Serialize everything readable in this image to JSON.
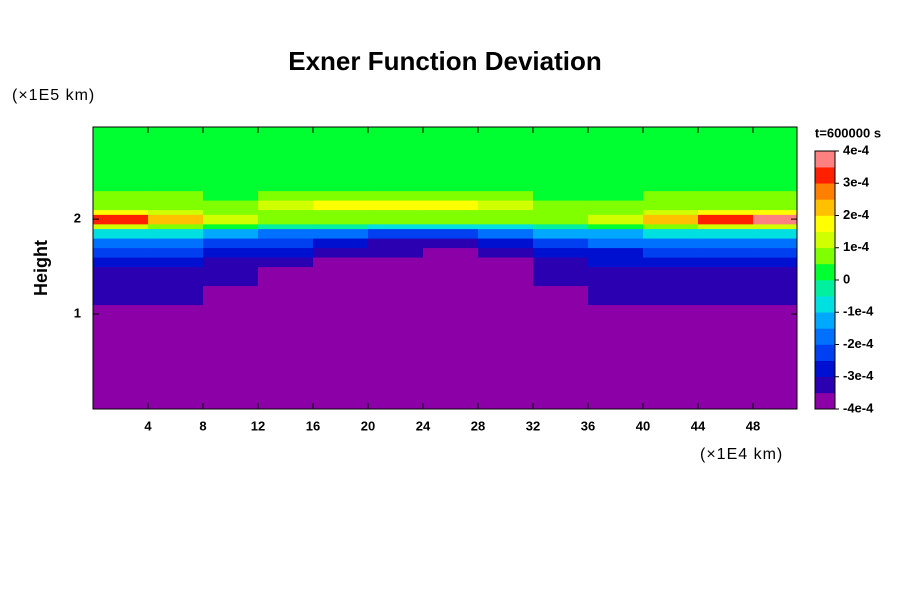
{
  "chart_data": {
    "type": "heatmap",
    "title": "Exner Function Deviation",
    "x_label": "(×1E4 km)",
    "y_label": "Height",
    "y_unit_label": "(×1E5 km)",
    "time_label": "t=600000 s",
    "xlim": [
      0,
      51.2
    ],
    "ylim": [
      0,
      2.97
    ],
    "xticks": [
      4,
      8,
      12,
      16,
      20,
      24,
      28,
      32,
      36,
      40,
      44,
      48
    ],
    "yticks": [
      1,
      2
    ],
    "x_edges": [
      0,
      4,
      8,
      12,
      16,
      20,
      24,
      28,
      32,
      36,
      40,
      44,
      48,
      51.2
    ],
    "y_edges": [
      0,
      1.1,
      1.3,
      1.5,
      1.6,
      1.7,
      1.8,
      1.9,
      1.95,
      2.05,
      2.1,
      2.2,
      2.3,
      2.5,
      2.97
    ],
    "z": [
      [
        -0.00038,
        -0.00038,
        -0.00038,
        -0.00038,
        -0.00038,
        -0.00038,
        -0.00038,
        -0.00038,
        -0.00038,
        -0.00038,
        -0.00038,
        -0.00038,
        -0.00038
      ],
      [
        -0.00034,
        -0.00034,
        -0.00036,
        -0.00038,
        -0.00038,
        -0.00038,
        -0.00038,
        -0.00038,
        -0.00036,
        -0.00034,
        -0.00034,
        -0.00033,
        -0.00033
      ],
      [
        -0.00031,
        -0.00032,
        -0.00034,
        -0.00036,
        -0.00038,
        -0.00038,
        -0.00038,
        -0.00038,
        -0.00034,
        -0.00032,
        -0.00031,
        -0.00031,
        -0.00031
      ],
      [
        -0.00028,
        -0.00029,
        -0.00031,
        -0.00033,
        -0.00036,
        -0.00038,
        -0.00038,
        -0.00038,
        -0.00033,
        -0.00029,
        -0.00028,
        -0.00028,
        -0.00028
      ],
      [
        -0.00024,
        -0.00025,
        -0.00027,
        -0.00029,
        -0.00032,
        -0.00034,
        -0.00036,
        -0.00034,
        -0.00029,
        -0.00026,
        -0.00024,
        -0.00024,
        -0.00024
      ],
      [
        -0.00018,
        -0.00019,
        -0.00021,
        -0.00024,
        -0.00027,
        -0.00031,
        -0.00032,
        -0.00029,
        -0.00024,
        -0.0002,
        -0.00018,
        -0.00018,
        -0.00018
      ],
      [
        -8e-05,
        -0.0001,
        -0.00013,
        -0.00016,
        -0.00019,
        -0.00022,
        -0.00023,
        -0.0002,
        -0.00015,
        -0.00011,
        -9e-05,
        -8e-05,
        -8e-05
      ],
      [
        0.00012,
        6e-05,
        2e-05,
        -2e-05,
        -5e-05,
        -8e-05,
        -9e-05,
        -6e-05,
        -2e-05,
        2e-05,
        6e-05,
        0.00012,
        0.00014
      ],
      [
        0.00034,
        0.00024,
        0.00012,
        8e-05,
        7e-05,
        6e-05,
        5e-05,
        6e-05,
        8e-05,
        0.00012,
        0.00022,
        0.00034,
        0.00036
      ],
      [
        0.00016,
        0.0001,
        7e-05,
        6e-05,
        8e-05,
        9e-05,
        8e-05,
        7e-05,
        6e-05,
        7e-05,
        0.0001,
        0.00016,
        0.00018
      ],
      [
        6e-05,
        7e-05,
        9e-05,
        0.00012,
        0.00016,
        0.00017,
        0.00016,
        0.00012,
        8e-05,
        6e-05,
        6e-05,
        6e-05,
        6e-05
      ],
      [
        7e-05,
        5e-05,
        4e-05,
        6e-05,
        8e-05,
        8e-05,
        8e-05,
        6e-05,
        4e-05,
        4e-05,
        6e-05,
        7e-05,
        7e-05
      ],
      [
        3e-05,
        3e-05,
        3e-05,
        3e-05,
        3e-05,
        3e-05,
        3e-05,
        3e-05,
        3e-05,
        3e-05,
        3e-05,
        3e-05,
        3e-05
      ],
      [
        2e-05,
        2e-05,
        2e-05,
        2e-05,
        2e-05,
        2e-05,
        2e-05,
        2e-05,
        2e-05,
        2e-05,
        2e-05,
        2e-05,
        2e-05
      ]
    ],
    "levels": [
      -0.0004,
      -0.00035,
      -0.0003,
      -0.00025,
      -0.0002,
      -0.00015,
      -0.0001,
      -5e-05,
      0,
      5e-05,
      0.0001,
      0.00015,
      0.0002,
      0.00025,
      0.0003,
      0.00035,
      0.0004
    ],
    "colors": [
      "#8c00a8",
      "#2a00b0",
      "#0010d0",
      "#0040f0",
      "#0070ff",
      "#00a8ff",
      "#00e0e0",
      "#00f0a0",
      "#00ff30",
      "#80ff00",
      "#d0ff00",
      "#ffff00",
      "#ffc000",
      "#ff8000",
      "#ff2000",
      "#ff8080"
    ],
    "colorbar_lim": [
      -0.0004,
      0.0004
    ],
    "colorbar_ticks": [
      {
        "value": 0.0004,
        "label": "4e-4"
      },
      {
        "value": 0.0003,
        "label": "3e-4"
      },
      {
        "value": 0.0002,
        "label": "2e-4"
      },
      {
        "value": 0.0001,
        "label": "1e-4"
      },
      0,
      {
        "value": -0.0001,
        "label": "-1e-4"
      },
      {
        "value": -0.0002,
        "label": "-2e-4"
      },
      {
        "value": -0.0003,
        "label": "-3e-4"
      },
      {
        "value": -0.0004,
        "label": "-4e-4"
      }
    ]
  }
}
